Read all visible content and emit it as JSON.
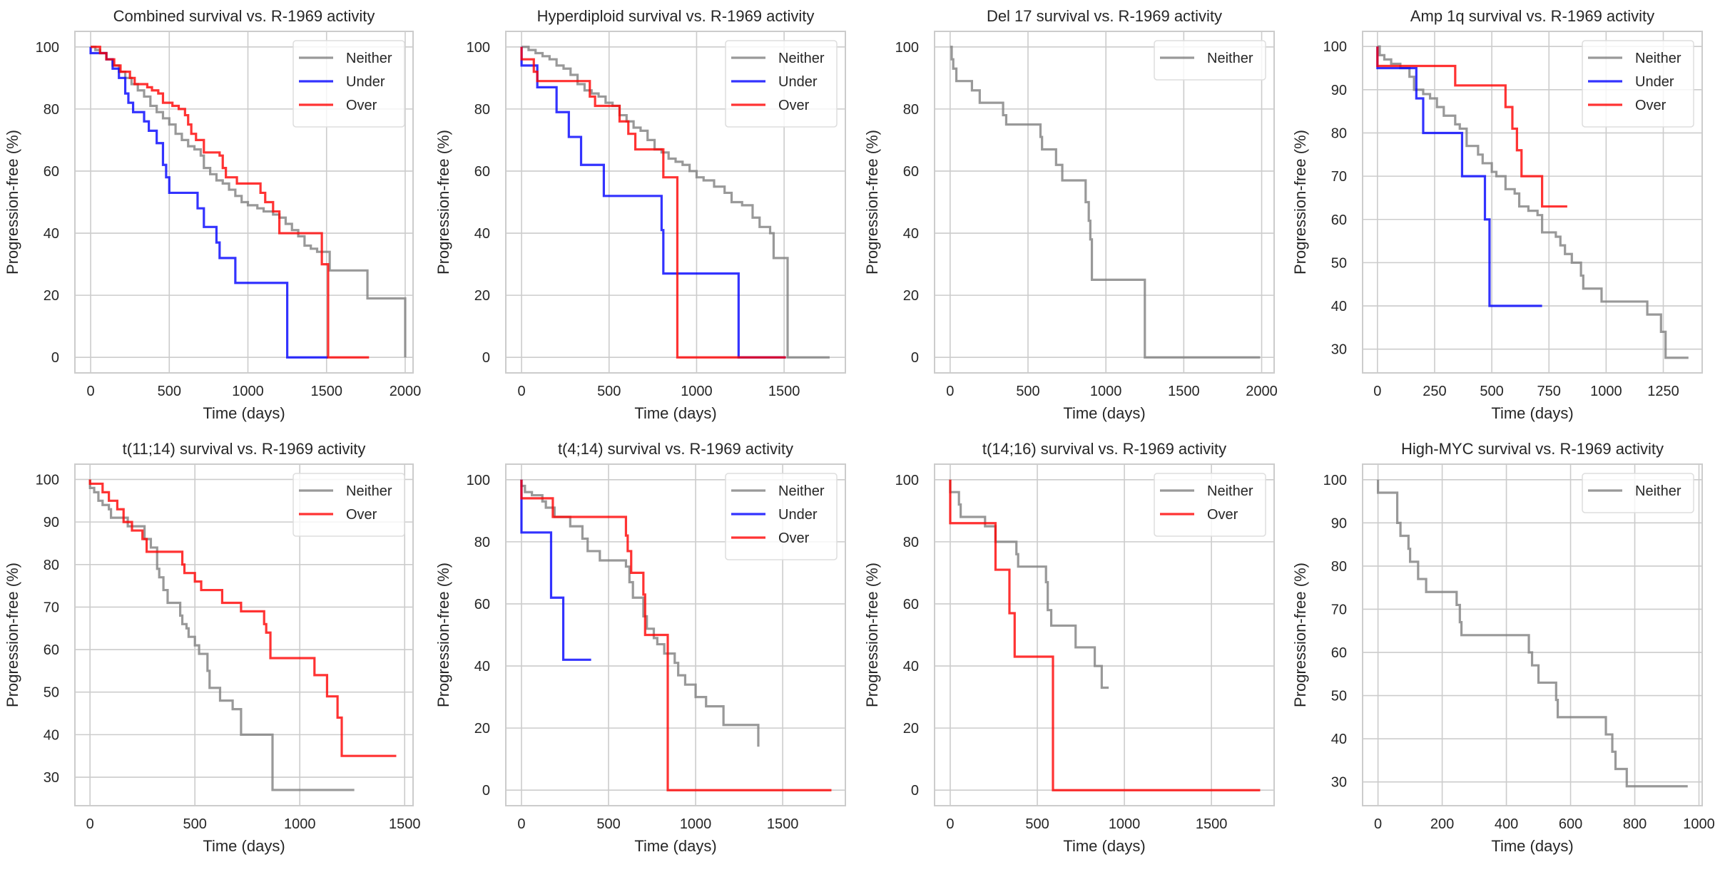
{
  "figure": {
    "series_colors": {
      "Neither": "#808080",
      "Under": "#0000ff",
      "Over": "#ff0000"
    }
  },
  "chart_data": [
    {
      "type": "line",
      "step": "post",
      "title": "Combined survival vs. R-1969 activity",
      "xlabel": "Time (days)",
      "ylabel": "Progression-free (%)",
      "xlim": [
        -100,
        2050
      ],
      "ylim": [
        -5,
        105
      ],
      "xticks": [
        0,
        500,
        1000,
        1500,
        2000
      ],
      "yticks": [
        0,
        20,
        40,
        60,
        80,
        100
      ],
      "grid": true,
      "legend": {
        "position": "top-right",
        "entries": [
          "Neither",
          "Under",
          "Over"
        ]
      },
      "series": [
        {
          "name": "Neither",
          "x": [
            0,
            30,
            60,
            100,
            140,
            180,
            220,
            260,
            300,
            340,
            380,
            420,
            460,
            500,
            540,
            580,
            620,
            660,
            700,
            720,
            760,
            800,
            840,
            880,
            920,
            960,
            1000,
            1060,
            1100,
            1160,
            1200,
            1240,
            1280,
            1320,
            1360,
            1400,
            1440,
            1520,
            1760,
            2000
          ],
          "y": [
            100,
            99,
            98,
            96,
            94,
            92,
            90,
            88,
            86,
            84,
            81,
            79,
            77,
            75,
            72,
            70,
            68,
            67,
            65,
            61,
            59,
            57,
            56,
            54,
            52,
            50,
            49,
            48,
            47,
            46,
            45,
            43,
            41,
            39,
            36,
            35,
            34,
            28,
            19,
            0
          ]
        },
        {
          "name": "Under",
          "x": [
            0,
            100,
            140,
            180,
            220,
            240,
            270,
            340,
            370,
            420,
            460,
            480,
            500,
            680,
            720,
            800,
            820,
            920,
            1250,
            1510
          ],
          "y": [
            98,
            96,
            93,
            90,
            85,
            82,
            79,
            76,
            73,
            69,
            62,
            58,
            53,
            48,
            42,
            37,
            32,
            24,
            0,
            0
          ]
        },
        {
          "name": "Over",
          "x": [
            0,
            60,
            100,
            150,
            190,
            250,
            280,
            360,
            390,
            430,
            460,
            520,
            560,
            600,
            620,
            640,
            670,
            720,
            820,
            840,
            860,
            930,
            1080,
            1110,
            1160,
            1200,
            1470,
            1510,
            1770
          ],
          "y": [
            100,
            98,
            96,
            94,
            92,
            90,
            88,
            87,
            86,
            85,
            82,
            81,
            80,
            78,
            75,
            72,
            70,
            66,
            65,
            61,
            58,
            56,
            53,
            50,
            47,
            40,
            30,
            0,
            0
          ]
        }
      ]
    },
    {
      "type": "line",
      "step": "post",
      "title": "Hyperdiploid survival vs. R-1969 activity",
      "xlabel": "Time (days)",
      "ylabel": "Progression-free (%)",
      "xlim": [
        -90,
        1850
      ],
      "ylim": [
        -5,
        105
      ],
      "xticks": [
        0,
        500,
        1000,
        1500
      ],
      "yticks": [
        0,
        20,
        40,
        60,
        80,
        100
      ],
      "grid": true,
      "legend": {
        "position": "top-right",
        "entries": [
          "Neither",
          "Under",
          "Over"
        ]
      },
      "series": [
        {
          "name": "Neither",
          "x": [
            0,
            40,
            80,
            120,
            160,
            200,
            240,
            280,
            320,
            360,
            400,
            440,
            480,
            520,
            560,
            600,
            640,
            680,
            720,
            760,
            800,
            840,
            880,
            920,
            960,
            1000,
            1040,
            1100,
            1160,
            1200,
            1260,
            1320,
            1360,
            1420,
            1440,
            1520,
            1760
          ],
          "y": [
            100,
            99,
            98,
            97,
            96,
            94,
            93,
            91,
            88,
            86,
            85,
            84,
            82,
            81,
            78,
            76,
            74,
            73,
            70,
            67,
            66,
            64,
            63,
            62,
            60,
            58,
            57,
            55,
            53,
            50,
            49,
            45,
            42,
            40,
            32,
            0,
            0
          ]
        },
        {
          "name": "Under",
          "x": [
            0,
            90,
            200,
            270,
            340,
            470,
            800,
            810,
            1240,
            1510
          ],
          "y": [
            94,
            87,
            79,
            71,
            62,
            52,
            41,
            27,
            0,
            0
          ]
        },
        {
          "name": "Over",
          "x": [
            0,
            70,
            90,
            390,
            420,
            560,
            610,
            650,
            810,
            890,
            1510
          ],
          "y": [
            96,
            92,
            89,
            84,
            81,
            76,
            72,
            67,
            58,
            0,
            0
          ]
        }
      ]
    },
    {
      "type": "line",
      "step": "post",
      "title": "Del 17 survival vs. R-1969 activity",
      "xlabel": "Time (days)",
      "ylabel": "Progression-free (%)",
      "xlim": [
        -100,
        2080
      ],
      "ylim": [
        -5,
        105
      ],
      "xticks": [
        0,
        500,
        1000,
        1500,
        2000
      ],
      "yticks": [
        0,
        20,
        40,
        60,
        80,
        100
      ],
      "grid": true,
      "legend": {
        "position": "top-right",
        "entries": [
          "Neither"
        ]
      },
      "series": [
        {
          "name": "Neither",
          "x": [
            0,
            10,
            20,
            40,
            140,
            190,
            340,
            360,
            580,
            590,
            680,
            720,
            870,
            890,
            900,
            910,
            1250,
            1990
          ],
          "y": [
            100,
            96,
            93,
            89,
            86,
            82,
            78,
            75,
            71,
            67,
            62,
            57,
            50,
            44,
            38,
            25,
            0,
            0
          ]
        }
      ]
    },
    {
      "type": "line",
      "step": "post",
      "title": "Amp 1q survival vs. R-1969 activity",
      "xlabel": "Time (days)",
      "ylabel": "Progression-free (%)",
      "xlim": [
        -65,
        1420
      ],
      "ylim": [
        24.5,
        103.5
      ],
      "xticks": [
        0,
        250,
        500,
        750,
        1000,
        1250
      ],
      "yticks": [
        30,
        40,
        50,
        60,
        70,
        80,
        90,
        100
      ],
      "grid": true,
      "legend": {
        "position": "top-right",
        "entries": [
          "Neither",
          "Under",
          "Over"
        ]
      },
      "series": [
        {
          "name": "Neither",
          "x": [
            0,
            10,
            30,
            60,
            100,
            140,
            160,
            200,
            230,
            260,
            290,
            340,
            360,
            390,
            440,
            460,
            500,
            520,
            560,
            600,
            620,
            660,
            700,
            720,
            780,
            800,
            820,
            850,
            890,
            900,
            980,
            1180,
            1240,
            1260,
            1360
          ],
          "y": [
            100,
            98,
            97,
            96,
            95,
            93,
            90,
            89,
            88,
            86,
            84,
            82,
            81,
            77,
            75,
            73,
            71,
            70,
            67,
            66,
            63,
            62,
            61,
            57,
            56,
            54,
            52,
            50,
            47,
            44,
            41,
            38,
            34,
            28,
            28
          ]
        },
        {
          "name": "Under",
          "x": [
            0,
            170,
            200,
            370,
            470,
            490,
            720
          ],
          "y": [
            95,
            88,
            80,
            70,
            60,
            40,
            40
          ]
        },
        {
          "name": "Over",
          "x": [
            0,
            340,
            560,
            590,
            610,
            630,
            720,
            830
          ],
          "y": [
            95.5,
            91,
            86,
            81,
            76,
            70,
            63,
            63
          ]
        }
      ]
    },
    {
      "type": "line",
      "step": "post",
      "title": "t(11;14) survival vs. R-1969 activity",
      "xlabel": "Time (days)",
      "ylabel": "Progression-free (%)",
      "xlim": [
        -72,
        1540
      ],
      "ylim": [
        23.3,
        103.6
      ],
      "xticks": [
        0,
        500,
        1000,
        1500
      ],
      "yticks": [
        30,
        40,
        50,
        60,
        70,
        80,
        90,
        100
      ],
      "grid": true,
      "legend": {
        "position": "top-right",
        "entries": [
          "Neither",
          "Over"
        ]
      },
      "series": [
        {
          "name": "Neither",
          "x": [
            0,
            20,
            40,
            60,
            90,
            100,
            110,
            180,
            200,
            260,
            290,
            320,
            330,
            350,
            370,
            430,
            440,
            460,
            470,
            500,
            520,
            560,
            570,
            620,
            680,
            720,
            870,
            1260
          ],
          "y": [
            98,
            97,
            95,
            94,
            93,
            91,
            91,
            89,
            89,
            86,
            84,
            79,
            77,
            74,
            71,
            68,
            66,
            65,
            63,
            61,
            59,
            55,
            51,
            48,
            46,
            40,
            27,
            27
          ]
        },
        {
          "name": "Over",
          "x": [
            0,
            60,
            90,
            130,
            160,
            200,
            250,
            270,
            440,
            450,
            500,
            530,
            630,
            720,
            830,
            840,
            860,
            1070,
            1130,
            1180,
            1200,
            1460
          ],
          "y": [
            99,
            97,
            95,
            93,
            90,
            88,
            86,
            83,
            80,
            78,
            76,
            74,
            71,
            69,
            66,
            64,
            58,
            54,
            49,
            44,
            35,
            35
          ]
        }
      ]
    },
    {
      "type": "line",
      "step": "post",
      "title": "t(4;14) survival vs. R-1969 activity",
      "xlabel": "Time (days)",
      "ylabel": "Progression-free (%)",
      "xlim": [
        -90,
        1860
      ],
      "ylim": [
        -5,
        105
      ],
      "xticks": [
        0,
        500,
        1000,
        1500
      ],
      "yticks": [
        0,
        20,
        40,
        60,
        80,
        100
      ],
      "grid": true,
      "legend": {
        "position": "top-right",
        "entries": [
          "Neither",
          "Under",
          "Over"
        ]
      },
      "series": [
        {
          "name": "Neither",
          "x": [
            0,
            20,
            60,
            120,
            140,
            190,
            280,
            350,
            380,
            450,
            600,
            620,
            640,
            700,
            720,
            760,
            780,
            820,
            880,
            900,
            940,
            1000,
            1060,
            1160,
            1360
          ],
          "y": [
            98,
            96,
            95,
            93,
            91,
            88,
            85,
            81,
            77,
            74,
            72,
            67,
            62,
            56,
            52,
            49,
            47,
            44,
            41,
            37,
            34,
            30,
            27,
            21,
            14
          ]
        },
        {
          "name": "Under",
          "x": [
            0,
            170,
            240,
            400
          ],
          "y": [
            83,
            62,
            42,
            42
          ]
        },
        {
          "name": "Over",
          "x": [
            0,
            180,
            600,
            610,
            630,
            700,
            710,
            840,
            1780
          ],
          "y": [
            94,
            88,
            82,
            77,
            70,
            63,
            50,
            0,
            0
          ]
        }
      ]
    },
    {
      "type": "line",
      "step": "post",
      "title": "t(14;16) survival vs. R-1969 activity",
      "xlabel": "Time (days)",
      "ylabel": "Progression-free (%)",
      "xlim": [
        -90,
        1860
      ],
      "ylim": [
        -5,
        105
      ],
      "xticks": [
        0,
        500,
        1000,
        1500
      ],
      "yticks": [
        0,
        20,
        40,
        60,
        80,
        100
      ],
      "grid": true,
      "legend": {
        "position": "top-right",
        "entries": [
          "Neither",
          "Over"
        ]
      },
      "series": [
        {
          "name": "Neither",
          "x": [
            0,
            50,
            60,
            200,
            260,
            380,
            390,
            550,
            560,
            580,
            720,
            830,
            870,
            910
          ],
          "y": [
            96,
            92,
            88,
            85,
            80,
            76,
            72,
            67,
            58,
            53,
            46,
            40,
            33,
            33
          ]
        },
        {
          "name": "Over",
          "x": [
            0,
            260,
            340,
            370,
            590,
            1780
          ],
          "y": [
            86,
            71,
            57,
            43,
            0,
            0
          ]
        }
      ]
    },
    {
      "type": "line",
      "step": "post",
      "title": "High-MYC survival vs. R-1969 activity",
      "xlabel": "Time (days)",
      "ylabel": "Progression-free (%)",
      "xlim": [
        -48,
        1010
      ],
      "ylim": [
        24.5,
        103.6
      ],
      "xticks": [
        0,
        200,
        400,
        600,
        800,
        1000
      ],
      "yticks": [
        30,
        40,
        50,
        60,
        70,
        80,
        90,
        100
      ],
      "grid": true,
      "legend": {
        "position": "top-right",
        "entries": [
          "Neither"
        ]
      },
      "series": [
        {
          "name": "Neither",
          "x": [
            0,
            60,
            70,
            95,
            100,
            125,
            150,
            245,
            255,
            260,
            470,
            480,
            500,
            555,
            560,
            710,
            730,
            740,
            775,
            965
          ],
          "y": [
            97,
            90,
            87,
            84,
            81,
            77,
            74,
            71,
            67,
            64,
            60,
            57,
            53,
            49,
            45,
            41,
            37,
            33,
            29,
            29
          ]
        }
      ]
    }
  ]
}
